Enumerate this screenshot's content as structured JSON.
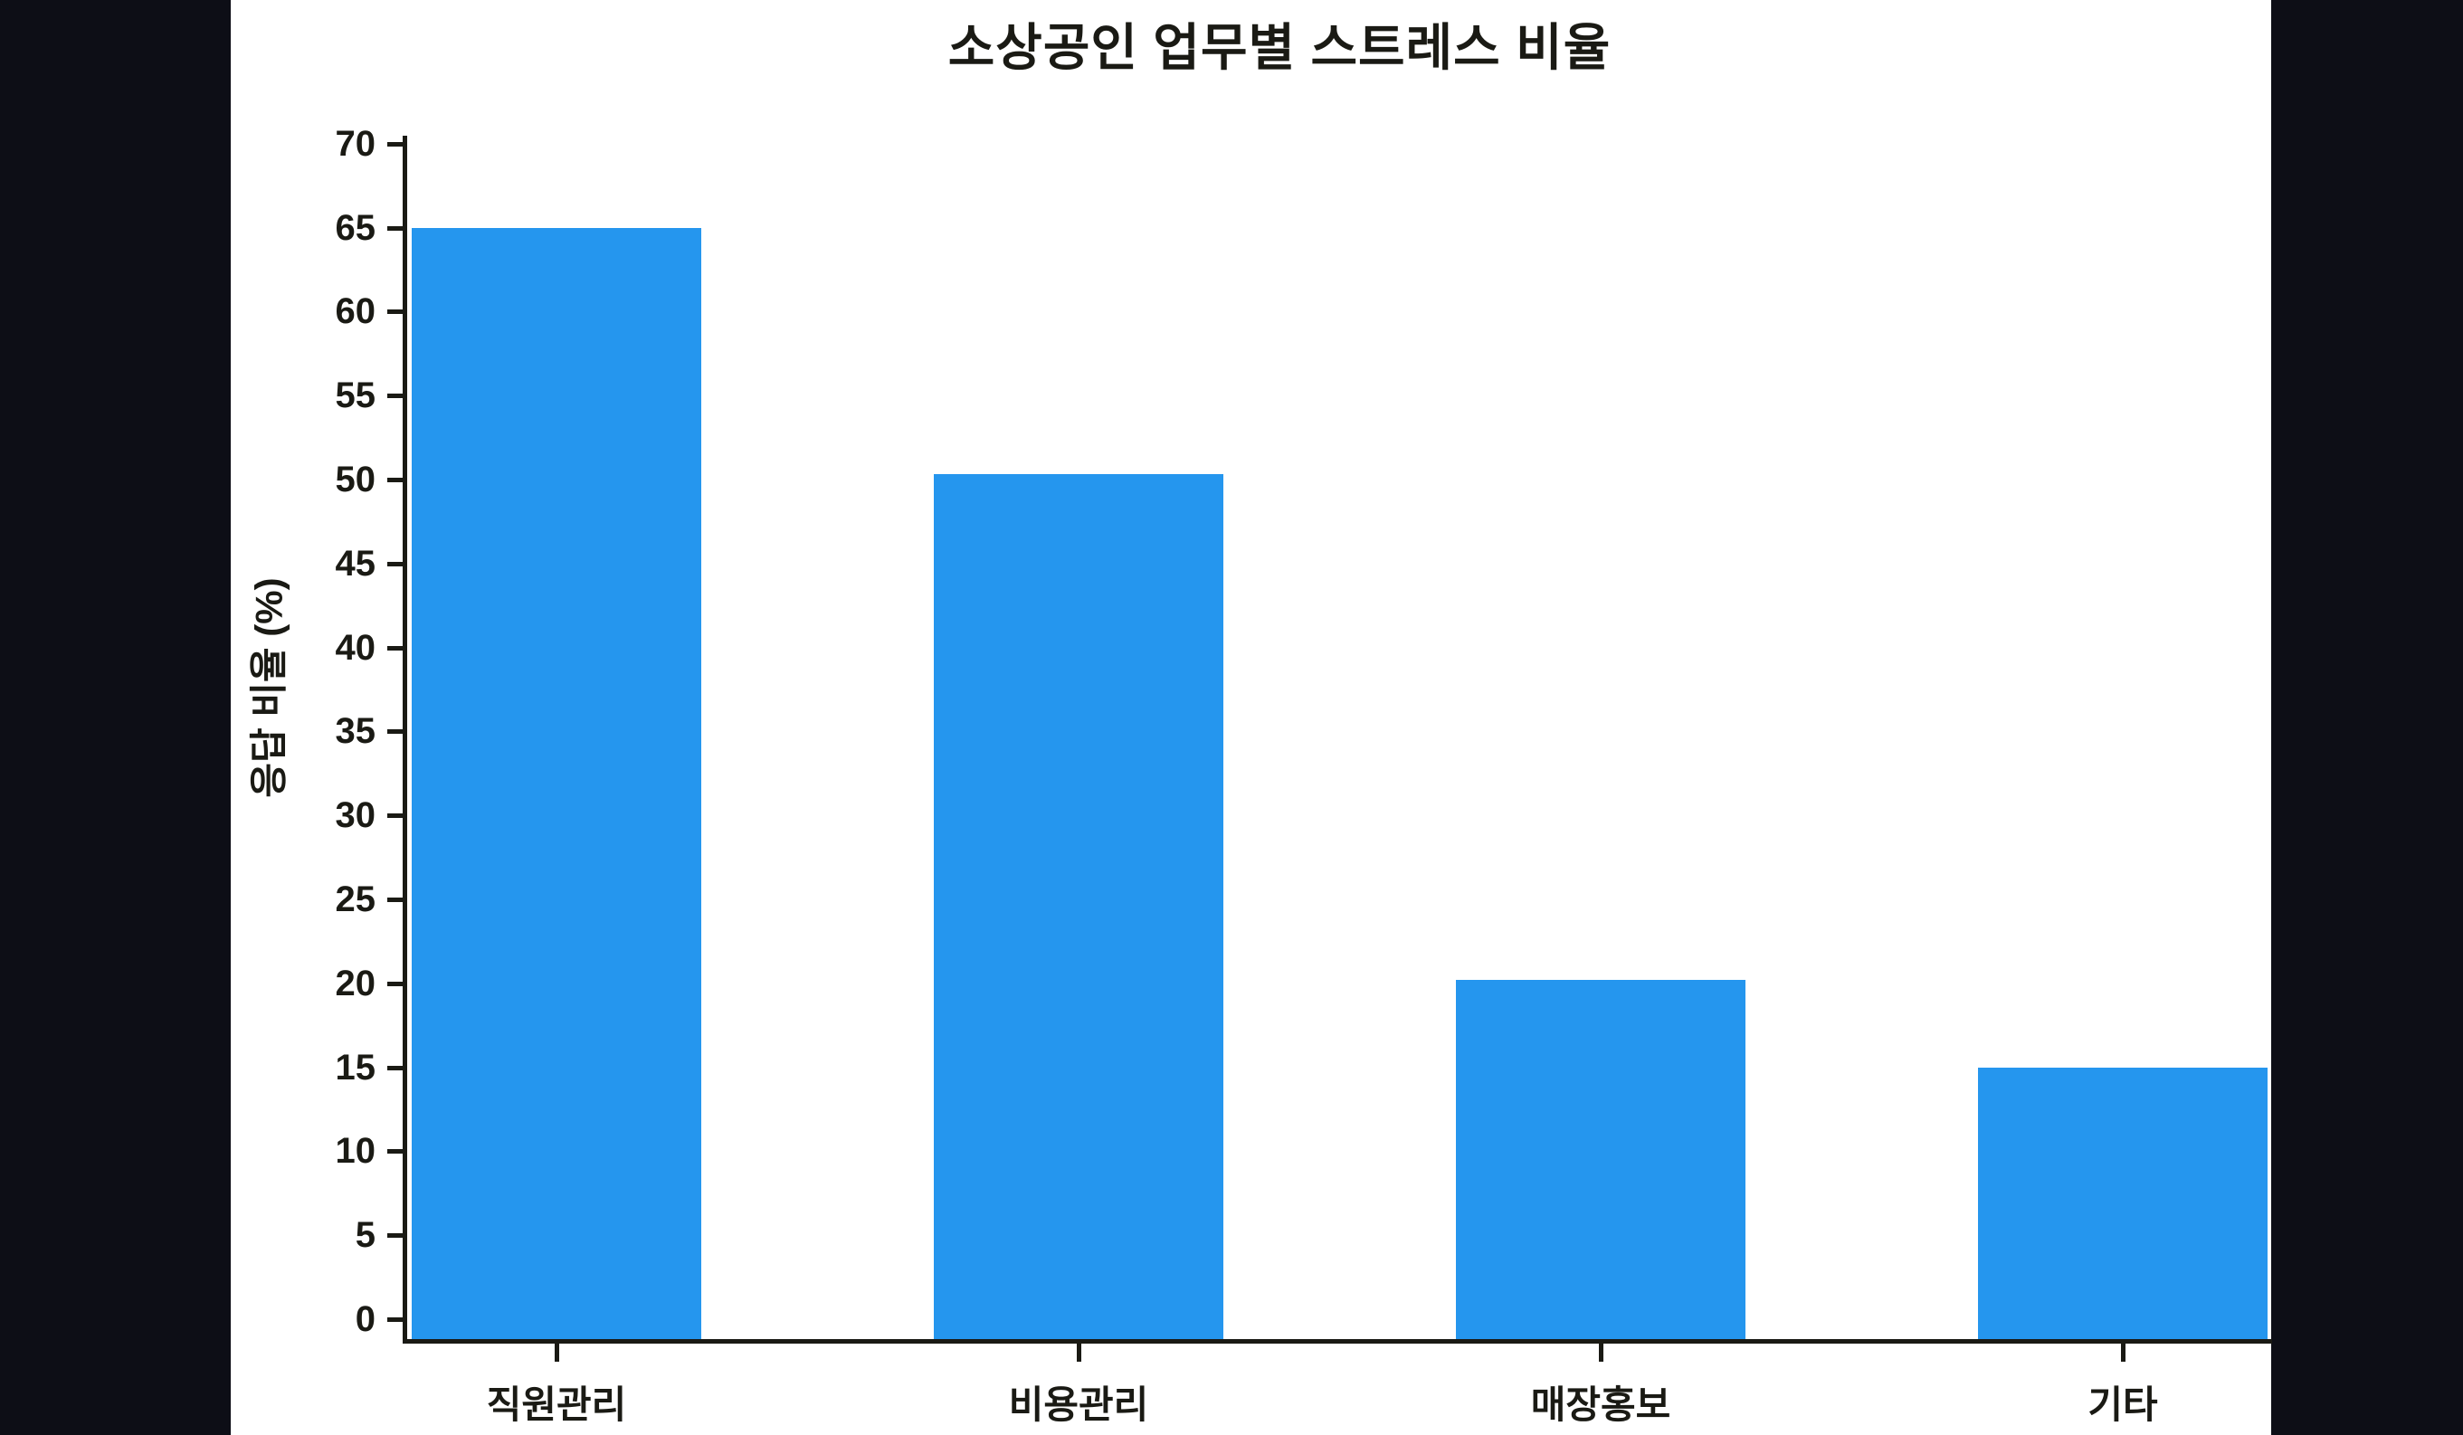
{
  "chart_data": {
    "type": "bar",
    "title": "소상공인 업무별 스트레스 비율",
    "ylabel": "응답 비율 (%)",
    "xlabel": "",
    "categories": [
      "직원관리",
      "비용관리",
      "매장홍보",
      "기타"
    ],
    "values": [
      65,
      50.3,
      20.2,
      15
    ],
    "ylim": [
      0,
      70
    ],
    "yticks": [
      0,
      5,
      10,
      15,
      20,
      25,
      30,
      35,
      40,
      45,
      50,
      55,
      60,
      65,
      70
    ],
    "grid": "off",
    "legend": "none",
    "bar_color": "#2596ee",
    "axis_color": "#1a1a14",
    "plot_background": "#ffffff",
    "outer_background": "#0d0e16"
  }
}
